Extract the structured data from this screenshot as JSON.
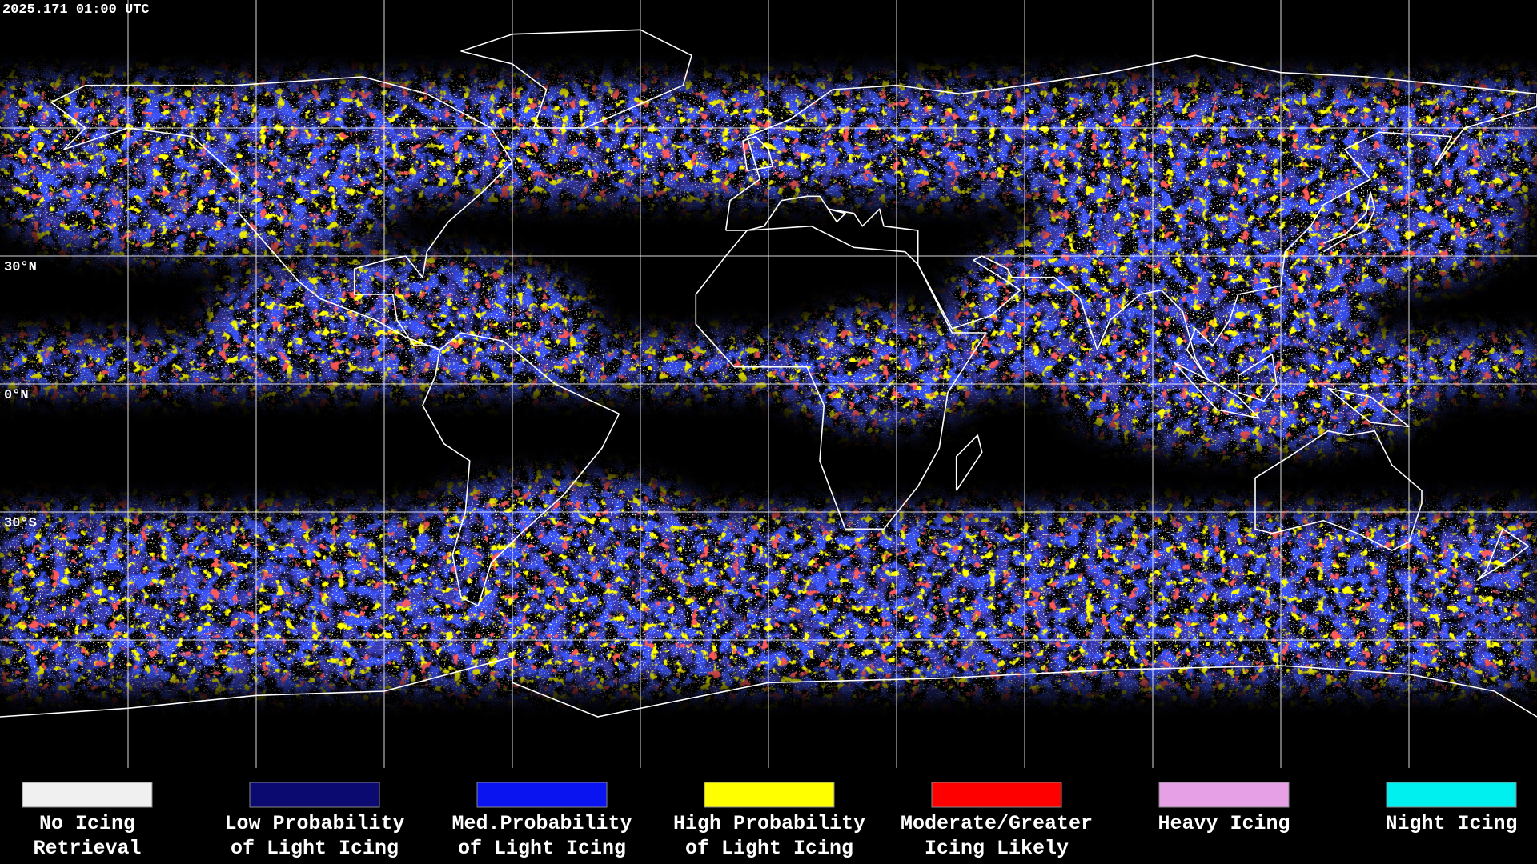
{
  "header": {
    "timestamp": "2025.171 01:00 UTC"
  },
  "map": {
    "latitude_labels": [
      "30°N",
      "0°N",
      "30°S"
    ]
  },
  "legend": {
    "items": [
      {
        "label": [
          "No Icing",
          "Retrieval"
        ],
        "color": "#f0f0f0"
      },
      {
        "label": [
          "Low Probability",
          "of Light Icing"
        ],
        "color": "#0a0a70"
      },
      {
        "label": [
          "Med.Probability",
          "of Light Icing"
        ],
        "color": "#0a14f0"
      },
      {
        "label": [
          "High Probability",
          "of Light Icing"
        ],
        "color": "#ffff00"
      },
      {
        "label": [
          "Moderate/Greater",
          "Icing Likely"
        ],
        "color": "#ff0000"
      },
      {
        "label": [
          "Heavy Icing"
        ],
        "color": "#e6a0e6"
      },
      {
        "label": [
          "Night Icing"
        ],
        "color": "#00f0f0"
      }
    ]
  }
}
